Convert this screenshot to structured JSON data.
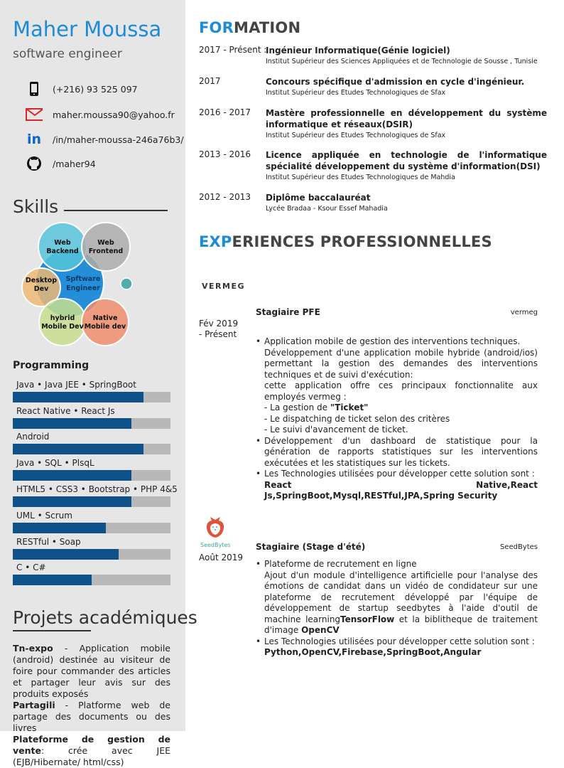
{
  "profile": {
    "name": "Maher Moussa",
    "title": "software engineer"
  },
  "contact": [
    {
      "icon": "phone-icon",
      "text": "(+216) 93 525 097"
    },
    {
      "icon": "email-icon",
      "text": "maher.moussa90@yahoo.fr"
    },
    {
      "icon": "linkedin-icon",
      "text": "/in/maher-moussa-246a76b3/"
    },
    {
      "icon": "github-icon",
      "text": "/maher94"
    }
  ],
  "skills": {
    "title": "Skills",
    "bubbles": [
      {
        "line1": "Web",
        "line2": "Backend",
        "color": "#4fc3d9"
      },
      {
        "line1": "Web",
        "line2": "Frontend",
        "color": "#a9a9a9"
      },
      {
        "line1": "Spftware",
        "line2": "Engineer",
        "color": "#1a8ad8"
      },
      {
        "line1": "Desktop",
        "line2": "Dev",
        "color": "#efb66e"
      },
      {
        "line1": "hybrid",
        "line2": "Mobile Dev",
        "color": "#c6de8a"
      },
      {
        "line1": "Native",
        "line2": "Mobile dev",
        "color": "#f08a66"
      }
    ]
  },
  "programming": {
    "title": "Programming",
    "items": [
      {
        "label": "Java  •  Java JEE •  SpringBoot",
        "percent": 83
      },
      {
        "label": "React Native  •  React Js",
        "percent": 75
      },
      {
        "label": "Android",
        "percent": 83
      },
      {
        "label": "Java  •  SQL  •  PlsqL",
        "percent": 75
      },
      {
        "label": "HTML5  • CSS3  •  Bootstrap  •  PHP 4&5",
        "percent": 75
      },
      {
        "label": "UML  •  Scrum",
        "percent": 59
      },
      {
        "label": "RESTful  •  Soap",
        "percent": 67
      },
      {
        "label": "C  •  C#",
        "percent": 50
      }
    ]
  },
  "projects": {
    "title": "Projets académiques",
    "items": [
      {
        "name": "Tn-expo",
        "desc": " - Application mobile (android) destinée au visiteur de foire pour commander des articles et partager leur avis sur des produits exposés"
      },
      {
        "name": "Partagili",
        "desc": " - Platforme web de partage des documents ou des livres"
      },
      {
        "name": "Plateforme de gestion de vente",
        "desc": ": crée avec JEE (EJB/Hibernate/ html/css)"
      }
    ]
  },
  "formation": {
    "title_accent": "FOR",
    "title_rest": "MATION",
    "items": [
      {
        "date": "2017 - Présent :",
        "title": "Ingénieur Informatique(Génie logiciel)",
        "school": "Institut Supérieur des Sciences Appliquées et de Technologie de Sousse , Tunisie"
      },
      {
        "date": "2017",
        "title": "Concours spécifique d'admission en cycle d'ingénieur.",
        "school": "Institut Supérieur des Etudes Technologiques de Sfax"
      },
      {
        "date": "2016 - 2017",
        "title": "Mastère professionnelle en développement du système informatique et réseaux(DSIR)",
        "school": "Institut Supérieur des Etudes Technologiques de Sfax"
      },
      {
        "date": "2013 - 2016",
        "title": "Licence appliquée en technologie de l'informatique spécialité développement du système d'information(DSI)",
        "school": "Institut Supérieur des Etudes Technologiques de Mahdia"
      },
      {
        "date": "2012 - 2013",
        "title": "Diplôme baccalauréat",
        "school": "Lycée Bradaa - Ksour Essef Mahadia"
      }
    ]
  },
  "experience": {
    "title_accent": "EXP",
    "title_rest": "ERIENCES PROFESSIONNELLES",
    "jobs": [
      {
        "logo": "VERMEG",
        "title": "Stagiaire PFE",
        "company": "vermeg",
        "date1": "Fév 2019",
        "date2": "- Présent",
        "b1_l1": "Application mobile de gestion des interventions techniques.",
        "b1_l2": "Développement d'une application mobile hybride (android/ios) permettant la gestion des demandes des interventions techniques et de suivi d'exécution:",
        "b1_l3": "cette application offre ces principaux fonctionnalite aux employés vermeg :",
        "b1_l4a": "- La gestion de ",
        "b1_l4b": "\"Ticket\"",
        "b1_l5": "- Le dispatching de ticket selon des critères",
        "b1_l6": "- Le suivi d'avancement de ticket.",
        "b2": "Développement d'un dashboard de statistique pour la génération de rapports statistiques sur les interventions exécutées et les statistiques sur les tickets.",
        "b3": "Les Technologies utilisées pour développer cette solution sont :",
        "b3_tech": "React Native,React Js,SpringBoot,Mysql,RESTful,JPA,Spring Security"
      },
      {
        "logo": "SeedBytes",
        "title": "Stagiaire (Stage d'été)",
        "company": "SeedBytes",
        "date1": "Août 2019",
        "b1_l1": "Plateforme de recrutement en ligne",
        "b1_l2": "Ajout d'un module d'intelligence artificielle pour l'analyse des émotions de candidat dans un vidéo de condidateur sur une plateforme de recrutement développé par l'équipe de développement de startup seedbytes à l'aide d'outil de machine learning",
        "b1_tf": "TensorFlow",
        "b1_l3": "et la biblitheque de traitement d'image ",
        "b1_cv": "OpenCV",
        "b2": "Les Technologies utilisées pour développer cette solution sont :",
        "b2_tech": "Python,OpenCV,Firebase,SpringBoot,Angular"
      }
    ]
  },
  "colors": {
    "accent": "#1e8bd6",
    "bar": "#0f5289",
    "sidebar": "#e6e6e6"
  }
}
